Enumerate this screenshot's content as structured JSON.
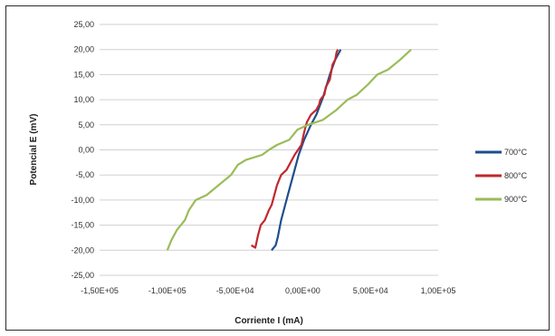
{
  "chart_data": {
    "type": "line",
    "title": "",
    "xlabel": "Corriente I (mA)",
    "ylabel": "Potencial E (mV)",
    "xlim": [
      -150000,
      100000
    ],
    "ylim": [
      -25,
      25
    ],
    "x_ticks": [
      -150000,
      -100000,
      -50000,
      0,
      50000,
      100000
    ],
    "x_tick_labels": [
      "-1,50E+05",
      "-1,00E+05",
      "-5,00E+04",
      "0,00E+00",
      "5,00E+04",
      "1,00E+05"
    ],
    "y_ticks": [
      25,
      20,
      15,
      10,
      5,
      0,
      -5,
      -10,
      -15,
      -20,
      -25
    ],
    "y_tick_labels": [
      "25,00",
      "20,00",
      "15,00",
      "10,00",
      "5,00",
      "0,00",
      "-5,00",
      "-10,00",
      "-15,00",
      "-20,00",
      "-25,00"
    ],
    "grid": "horizontal",
    "legend_position": "right",
    "series": [
      {
        "name": "700°C",
        "color": "#1f4e8c",
        "points": [
          [
            -23000,
            -20
          ],
          [
            -20000,
            -19
          ],
          [
            -18500,
            -17.5
          ],
          [
            -16000,
            -14
          ],
          [
            -11000,
            -9
          ],
          [
            -7000,
            -5
          ],
          [
            -3000,
            -1
          ],
          [
            1000,
            2
          ],
          [
            6000,
            5
          ],
          [
            10000,
            7
          ],
          [
            15000,
            10.5
          ],
          [
            20000,
            15
          ],
          [
            24000,
            18
          ],
          [
            28000,
            20
          ]
        ]
      },
      {
        "name": "800°C",
        "color": "#c0282d",
        "points": [
          [
            -38000,
            -19
          ],
          [
            -35000,
            -19.5
          ],
          [
            -33000,
            -17
          ],
          [
            -31000,
            -15
          ],
          [
            -28000,
            -14
          ],
          [
            -25000,
            -12
          ],
          [
            -23000,
            -11
          ],
          [
            -19000,
            -7
          ],
          [
            -16000,
            -5
          ],
          [
            -12000,
            -4
          ],
          [
            -6000,
            -1
          ],
          [
            -1000,
            1
          ],
          [
            1000,
            3.5
          ],
          [
            3000,
            5.5
          ],
          [
            6000,
            7
          ],
          [
            10000,
            8
          ],
          [
            12000,
            9
          ],
          [
            13000,
            10
          ],
          [
            16000,
            11
          ],
          [
            17000,
            12.5
          ],
          [
            20000,
            14
          ],
          [
            21000,
            15.5
          ],
          [
            22000,
            17
          ],
          [
            24000,
            18
          ],
          [
            25000,
            19.5
          ],
          [
            26000,
            20
          ]
        ]
      },
      {
        "name": "900°C",
        "color": "#9bbb59",
        "points": [
          [
            -100000,
            -20
          ],
          [
            -97000,
            -18
          ],
          [
            -93000,
            -16
          ],
          [
            -87000,
            -14
          ],
          [
            -84000,
            -12
          ],
          [
            -79000,
            -10
          ],
          [
            -71000,
            -9
          ],
          [
            -62000,
            -7
          ],
          [
            -53000,
            -5
          ],
          [
            -48000,
            -3
          ],
          [
            -42000,
            -2
          ],
          [
            -30000,
            -1
          ],
          [
            -25000,
            0
          ],
          [
            -19000,
            1
          ],
          [
            -10000,
            2
          ],
          [
            -4000,
            4
          ],
          [
            4000,
            5
          ],
          [
            15000,
            6
          ],
          [
            25000,
            8
          ],
          [
            33000,
            10
          ],
          [
            40000,
            11
          ],
          [
            48000,
            13
          ],
          [
            55000,
            15
          ],
          [
            63000,
            16
          ],
          [
            72000,
            18
          ],
          [
            80000,
            20
          ]
        ]
      }
    ]
  }
}
